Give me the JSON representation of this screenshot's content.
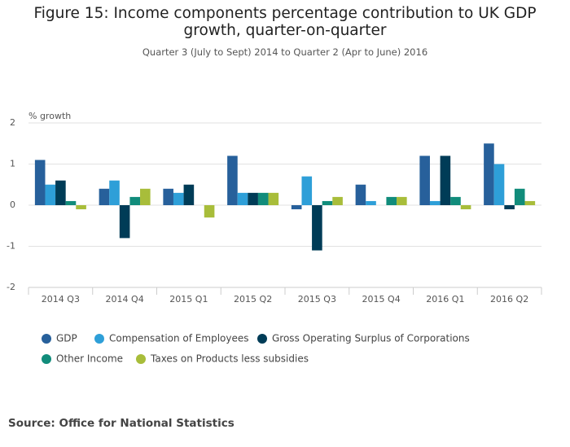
{
  "chart_data": {
    "type": "bar",
    "title": "Figure 15: Income components percentage contribution to UK GDP growth, quarter-on-quarter",
    "subtitle": "Quarter 3 (July to Sept) 2014 to Quarter 2 (Apr to June) 2016",
    "y_axis_label": "% growth",
    "categories": [
      "2014 Q3",
      "2014 Q4",
      "2015 Q1",
      "2015 Q2",
      "2015 Q3",
      "2015 Q4",
      "2016 Q1",
      "2016 Q2"
    ],
    "series": [
      {
        "name": "GDP",
        "color": "#27609b",
        "values": [
          1.1,
          0.4,
          0.4,
          1.2,
          -0.1,
          0.5,
          1.2,
          1.5
        ]
      },
      {
        "name": "Compensation of Employees",
        "color": "#2e9fd8",
        "values": [
          0.5,
          0.6,
          0.3,
          0.3,
          0.7,
          0.1,
          0.1,
          1.0
        ]
      },
      {
        "name": "Gross Operating Surplus of Corporations",
        "color": "#003c57",
        "values": [
          0.6,
          -0.8,
          0.5,
          0.3,
          -1.1,
          0.0,
          1.2,
          -0.1
        ]
      },
      {
        "name": "Other Income",
        "color": "#118c7b",
        "values": [
          0.1,
          0.2,
          0.0,
          0.3,
          0.1,
          0.2,
          0.2,
          0.4
        ]
      },
      {
        "name": "Taxes on Products less subsidies",
        "color": "#a8bd3a",
        "values": [
          -0.1,
          0.4,
          -0.3,
          0.3,
          0.2,
          0.2,
          -0.1,
          0.1
        ]
      }
    ],
    "ylim": [
      -2,
      2
    ],
    "yticks": [
      -2,
      -1,
      0,
      1,
      2
    ],
    "grid": true,
    "source": "Source: Office for National Statistics"
  }
}
